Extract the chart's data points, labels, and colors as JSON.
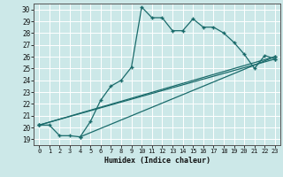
{
  "xlabel": "Humidex (Indice chaleur)",
  "bg_color": "#cce8e8",
  "line_color": "#1a6b6b",
  "grid_color": "#ffffff",
  "xlim": [
    -0.5,
    23.5
  ],
  "ylim": [
    18.5,
    30.5
  ],
  "yticks": [
    19,
    20,
    21,
    22,
    23,
    24,
    25,
    26,
    27,
    28,
    29,
    30
  ],
  "xticks": [
    0,
    1,
    2,
    3,
    4,
    5,
    6,
    7,
    8,
    9,
    10,
    11,
    12,
    13,
    14,
    15,
    16,
    17,
    18,
    19,
    20,
    21,
    22,
    23
  ],
  "lines": [
    {
      "x": [
        0,
        1,
        2,
        3,
        4,
        5,
        6,
        7,
        8,
        9,
        10,
        11,
        12,
        13,
        14,
        15,
        16,
        17,
        18,
        19,
        20,
        21,
        22,
        23
      ],
      "y": [
        20.2,
        20.2,
        19.3,
        19.3,
        19.2,
        20.5,
        22.3,
        23.5,
        24.0,
        25.1,
        30.2,
        29.3,
        29.3,
        28.2,
        28.2,
        29.2,
        28.5,
        28.5,
        28.0,
        27.2,
        26.2,
        25.0,
        26.1,
        25.8
      ]
    },
    {
      "x": [
        0,
        23
      ],
      "y": [
        20.2,
        25.8
      ]
    },
    {
      "x": [
        0,
        23
      ],
      "y": [
        20.2,
        26.0
      ]
    },
    {
      "x": [
        4,
        23
      ],
      "y": [
        19.2,
        26.0
      ]
    }
  ]
}
